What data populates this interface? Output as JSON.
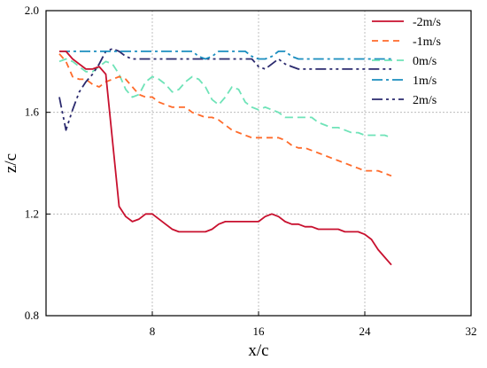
{
  "chart_data": {
    "type": "line",
    "xlabel": "x/c",
    "ylabel": "z/c",
    "xlim": [
      0,
      32
    ],
    "ylim": [
      0.8,
      2.0
    ],
    "x_ticks": [
      8,
      16,
      24,
      32
    ],
    "x_tick_labels": [
      "8",
      "16",
      "24",
      "32"
    ],
    "y_ticks": [
      0.8,
      1.2,
      1.6,
      2.0
    ],
    "y_tick_labels": [
      "0.8",
      "1.2",
      "1.6",
      "2.0"
    ],
    "grid": true,
    "legend_position": "top-right",
    "series": [
      {
        "name": "-2m/s",
        "color": "#c8102e",
        "dash": "solid",
        "x": [
          1.0,
          1.5,
          2.0,
          2.5,
          3.0,
          3.5,
          4.0,
          4.5,
          5.0,
          5.5,
          6.0,
          6.5,
          7.0,
          7.5,
          8.0,
          8.5,
          9.0,
          9.5,
          10.0,
          10.5,
          11.0,
          11.5,
          12.0,
          12.5,
          13.0,
          13.5,
          14.0,
          14.5,
          15.0,
          15.5,
          16.0,
          16.5,
          17.0,
          17.5,
          18.0,
          18.5,
          19.0,
          19.5,
          20.0,
          20.5,
          21.0,
          21.5,
          22.0,
          22.5,
          23.0,
          23.5,
          24.0,
          24.5,
          25.0,
          25.5,
          26.0
        ],
        "y": [
          1.84,
          1.84,
          1.81,
          1.79,
          1.77,
          1.77,
          1.78,
          1.75,
          1.49,
          1.23,
          1.19,
          1.17,
          1.18,
          1.2,
          1.2,
          1.18,
          1.16,
          1.14,
          1.13,
          1.13,
          1.13,
          1.13,
          1.13,
          1.14,
          1.16,
          1.17,
          1.17,
          1.17,
          1.17,
          1.17,
          1.17,
          1.19,
          1.2,
          1.19,
          1.17,
          1.16,
          1.16,
          1.15,
          1.15,
          1.14,
          1.14,
          1.14,
          1.14,
          1.13,
          1.13,
          1.13,
          1.12,
          1.1,
          1.06,
          1.03,
          1.0
        ]
      },
      {
        "name": "-1m/s",
        "color": "#ff6b2b",
        "dash": "7,5",
        "x": [
          1.0,
          1.5,
          2.0,
          2.5,
          3.0,
          3.5,
          4.0,
          4.5,
          5.0,
          5.5,
          6.0,
          6.5,
          7.0,
          7.5,
          8.0,
          8.5,
          9.0,
          9.5,
          10.0,
          10.5,
          11.0,
          11.5,
          12.0,
          12.5,
          13.0,
          13.5,
          14.0,
          14.5,
          15.0,
          15.5,
          16.0,
          16.5,
          17.0,
          17.5,
          18.0,
          18.5,
          19.0,
          19.5,
          20.0,
          20.5,
          21.0,
          21.5,
          22.0,
          22.5,
          23.0,
          23.5,
          24.0,
          24.5,
          25.0,
          25.5,
          26.0
        ],
        "y": [
          1.83,
          1.8,
          1.74,
          1.73,
          1.73,
          1.71,
          1.7,
          1.72,
          1.73,
          1.74,
          1.73,
          1.7,
          1.67,
          1.66,
          1.66,
          1.64,
          1.63,
          1.62,
          1.62,
          1.62,
          1.6,
          1.59,
          1.58,
          1.58,
          1.57,
          1.55,
          1.53,
          1.52,
          1.51,
          1.5,
          1.5,
          1.5,
          1.5,
          1.5,
          1.49,
          1.47,
          1.46,
          1.46,
          1.45,
          1.44,
          1.43,
          1.42,
          1.41,
          1.4,
          1.39,
          1.38,
          1.37,
          1.37,
          1.37,
          1.36,
          1.35
        ]
      },
      {
        "name": "0m/s",
        "color": "#6fe3b8",
        "dash": "9,5",
        "x": [
          1.0,
          1.5,
          2.0,
          2.5,
          3.0,
          3.5,
          4.0,
          4.5,
          5.0,
          5.5,
          6.0,
          6.5,
          7.0,
          7.5,
          8.0,
          8.5,
          9.0,
          9.5,
          10.0,
          10.5,
          11.0,
          11.5,
          12.0,
          12.5,
          13.0,
          13.5,
          14.0,
          14.5,
          15.0,
          15.5,
          16.0,
          16.5,
          17.0,
          17.5,
          18.0,
          18.5,
          19.0,
          19.5,
          20.0,
          20.5,
          21.0,
          21.5,
          22.0,
          22.5,
          23.0,
          23.5,
          24.0,
          24.5,
          25.0,
          25.5,
          26.0
        ],
        "y": [
          1.8,
          1.81,
          1.8,
          1.78,
          1.76,
          1.76,
          1.78,
          1.8,
          1.79,
          1.75,
          1.69,
          1.66,
          1.67,
          1.72,
          1.74,
          1.73,
          1.71,
          1.68,
          1.69,
          1.72,
          1.74,
          1.73,
          1.7,
          1.65,
          1.63,
          1.66,
          1.7,
          1.69,
          1.64,
          1.62,
          1.61,
          1.62,
          1.61,
          1.6,
          1.58,
          1.58,
          1.58,
          1.58,
          1.58,
          1.56,
          1.55,
          1.54,
          1.54,
          1.53,
          1.52,
          1.52,
          1.51,
          1.51,
          1.51,
          1.51,
          1.5
        ]
      },
      {
        "name": "1m/s",
        "color": "#1a8dbf",
        "dash": "12,4,3,4",
        "x": [
          1.0,
          1.5,
          2.0,
          2.5,
          3.0,
          3.5,
          4.0,
          4.5,
          5.0,
          5.5,
          6.0,
          6.5,
          7.0,
          7.5,
          8.0,
          8.5,
          9.0,
          9.5,
          10.0,
          10.5,
          11.0,
          11.5,
          12.0,
          12.5,
          13.0,
          13.5,
          14.0,
          14.5,
          15.0,
          15.5,
          16.0,
          16.5,
          17.0,
          17.5,
          18.0,
          18.5,
          19.0,
          19.5,
          20.0,
          20.5,
          21.0,
          21.5,
          22.0,
          22.5,
          23.0,
          23.5,
          24.0,
          24.5,
          25.0,
          25.5,
          26.0
        ],
        "y": [
          1.84,
          1.84,
          1.84,
          1.84,
          1.84,
          1.84,
          1.84,
          1.84,
          1.84,
          1.84,
          1.84,
          1.84,
          1.84,
          1.84,
          1.84,
          1.84,
          1.84,
          1.84,
          1.84,
          1.84,
          1.84,
          1.82,
          1.81,
          1.82,
          1.84,
          1.84,
          1.84,
          1.84,
          1.84,
          1.82,
          1.81,
          1.81,
          1.82,
          1.84,
          1.84,
          1.82,
          1.81,
          1.81,
          1.81,
          1.81,
          1.81,
          1.81,
          1.81,
          1.81,
          1.81,
          1.81,
          1.81,
          1.81,
          1.81,
          1.81,
          1.81
        ]
      },
      {
        "name": "2m/s",
        "color": "#2b2a6e",
        "dash": "12,4,3,4,3,4",
        "x": [
          1.0,
          1.5,
          2.0,
          2.5,
          3.0,
          3.5,
          4.0,
          4.5,
          5.0,
          5.5,
          6.0,
          6.5,
          7.0,
          7.5,
          8.0,
          8.5,
          9.0,
          9.5,
          10.0,
          10.5,
          11.0,
          11.5,
          12.0,
          12.5,
          13.0,
          13.5,
          14.0,
          14.5,
          15.0,
          15.5,
          16.0,
          16.5,
          17.0,
          17.5,
          18.0,
          18.5,
          19.0,
          19.5,
          20.0,
          20.5,
          21.0,
          21.5,
          22.0,
          22.5,
          23.0,
          23.5,
          24.0,
          24.5,
          25.0,
          25.5,
          26.0
        ],
        "y": [
          1.66,
          1.53,
          1.61,
          1.68,
          1.72,
          1.75,
          1.79,
          1.84,
          1.85,
          1.84,
          1.82,
          1.81,
          1.81,
          1.81,
          1.81,
          1.81,
          1.81,
          1.81,
          1.81,
          1.81,
          1.81,
          1.81,
          1.81,
          1.81,
          1.81,
          1.81,
          1.81,
          1.81,
          1.81,
          1.81,
          1.78,
          1.77,
          1.79,
          1.81,
          1.79,
          1.78,
          1.77,
          1.77,
          1.77,
          1.77,
          1.77,
          1.77,
          1.77,
          1.77,
          1.77,
          1.77,
          1.77,
          1.77,
          1.77,
          1.77,
          1.77
        ]
      }
    ]
  }
}
